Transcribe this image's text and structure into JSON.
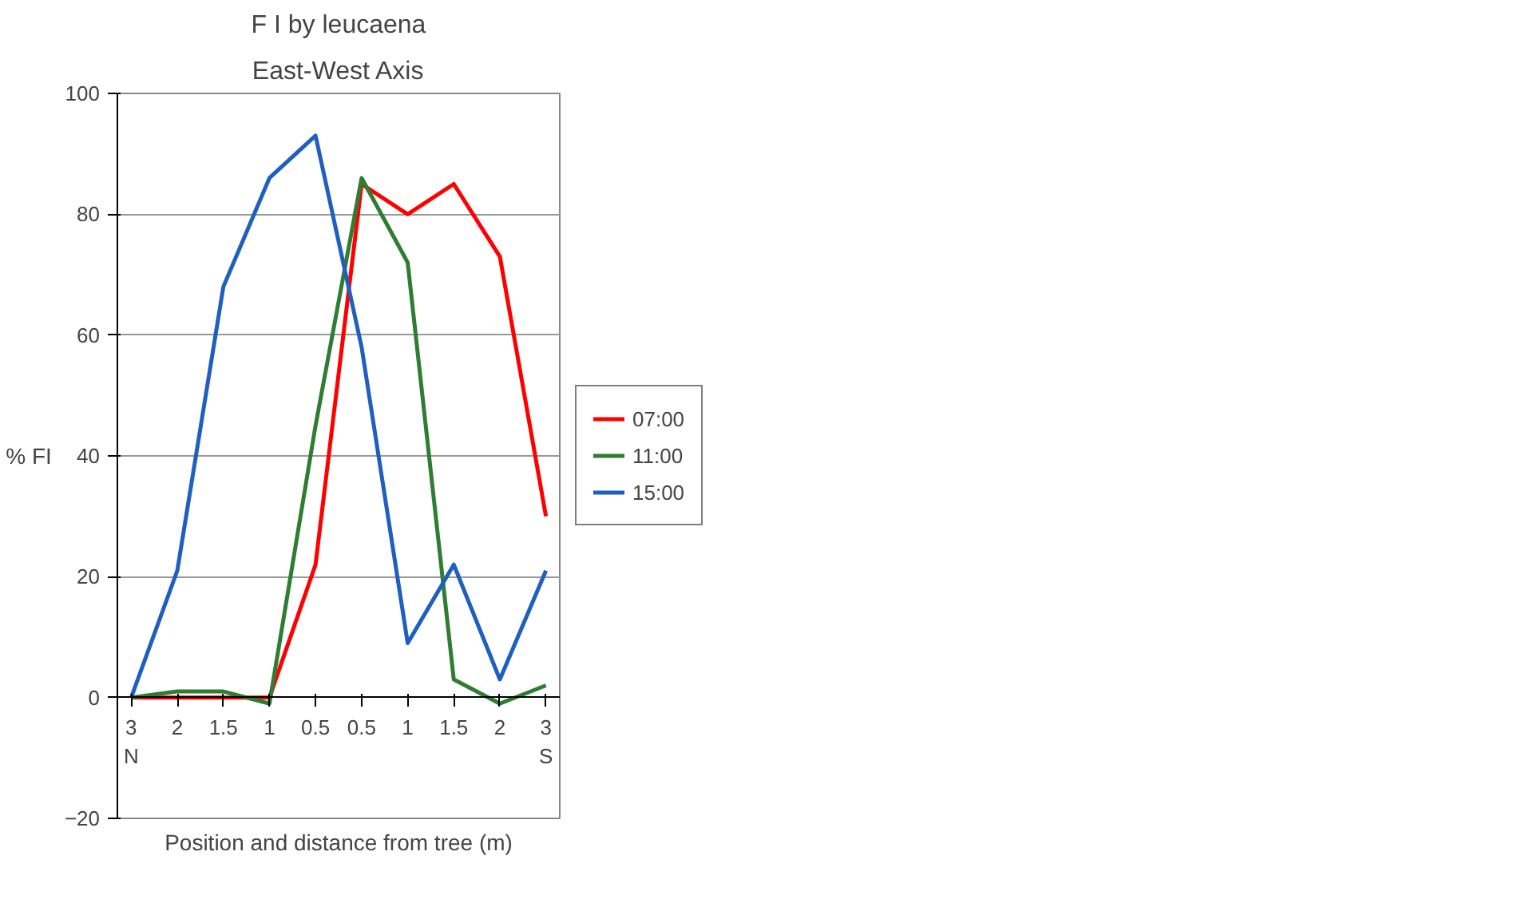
{
  "chart_data": {
    "type": "line",
    "title": "F I by leucaena",
    "subtitle": "East-West Axis",
    "xlabel": "Position and distance from tree (m)",
    "ylabel": "% FI",
    "categories": [
      "3\nN",
      "2",
      "1.5",
      "1",
      "0.5",
      "0.5",
      "1",
      "1.5",
      "2",
      "3\nS"
    ],
    "series": [
      {
        "name": "07:00",
        "color": "#ff0000",
        "values": [
          0,
          0,
          0,
          0,
          22,
          85,
          80,
          85,
          73,
          30
        ]
      },
      {
        "name": "11:00",
        "color": "#2e7d32",
        "values": [
          0,
          1,
          1,
          -1,
          45,
          86,
          72,
          3,
          -1,
          2
        ]
      },
      {
        "name": "15:00",
        "color": "#1f5fbf",
        "values": [
          0,
          21,
          68,
          86,
          93,
          58,
          9,
          22,
          3,
          21
        ]
      }
    ],
    "ylim": [
      -20,
      100
    ],
    "yticks": [
      -20,
      0,
      20,
      40,
      60,
      80,
      100
    ],
    "grid": "y",
    "legend": "right",
    "marker": "none",
    "line_style": "solid"
  }
}
